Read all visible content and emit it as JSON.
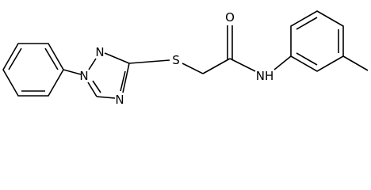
{
  "atoms": [
    {
      "label": "N"
    },
    {
      "label": "N"
    },
    {
      "label": "N"
    },
    {
      "label": "S"
    },
    {
      "label": "O"
    },
    {
      "label": "NH"
    }
  ]
}
